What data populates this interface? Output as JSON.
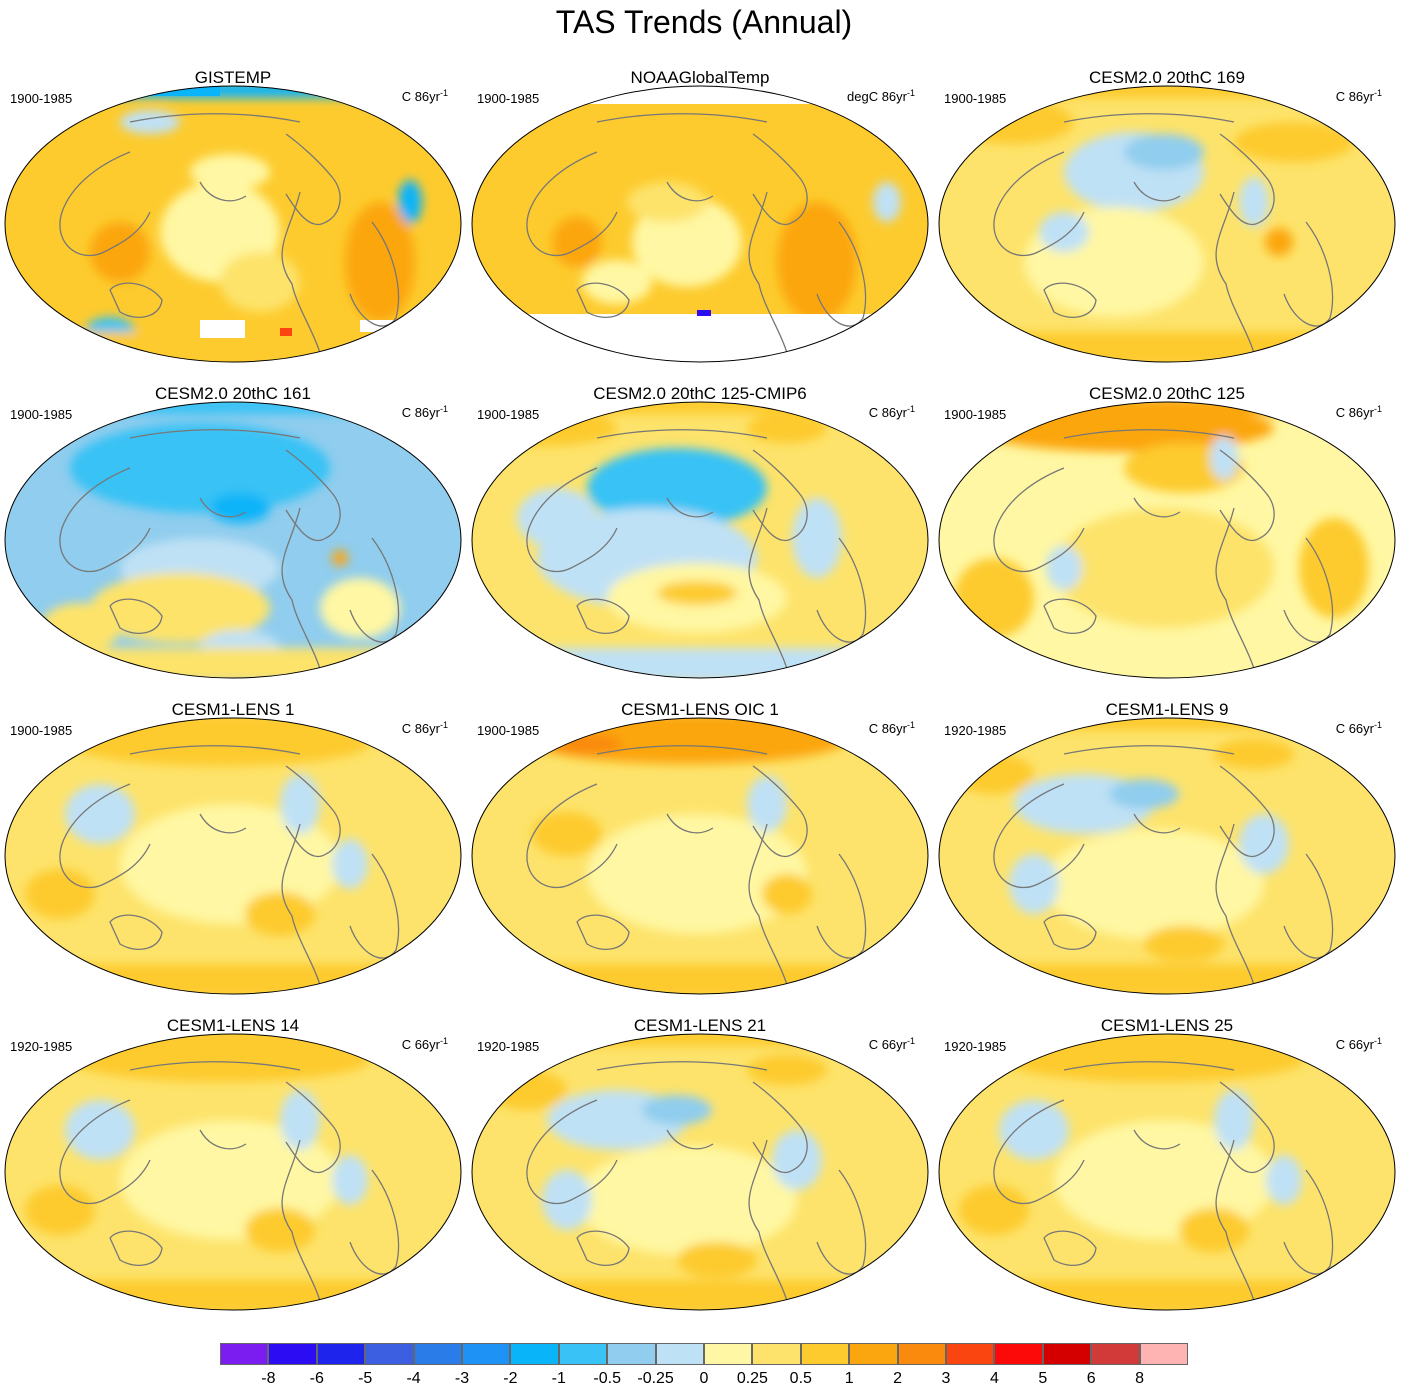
{
  "title": "TAS Trends (Annual)",
  "panels": [
    {
      "title": "GISTEMP",
      "period": "1900-1985",
      "units": "C 86yr",
      "units_exp": "-1",
      "pattern": "gistemp"
    },
    {
      "title": "NOAAGlobalTemp",
      "period": "1900-1985",
      "units": "degC 86yr",
      "units_exp": "-1",
      "pattern": "noaa"
    },
    {
      "title": "CESM2.0 20thC 169",
      "period": "1900-1985",
      "units": "C 86yr",
      "units_exp": "-1",
      "pattern": "mild"
    },
    {
      "title": "CESM2.0 20thC 161",
      "period": "1900-1985",
      "units": "C 86yr",
      "units_exp": "-1",
      "pattern": "cold"
    },
    {
      "title": "CESM2.0 20thC 125-CMIP6",
      "period": "1900-1985",
      "units": "C 86yr",
      "units_exp": "-1",
      "pattern": "coldpac"
    },
    {
      "title": "CESM2.0 20thC 125",
      "period": "1900-1985",
      "units": "C 86yr",
      "units_exp": "-1",
      "pattern": "warm"
    },
    {
      "title": "CESM1-LENS 1",
      "period": "1900-1985",
      "units": "C 86yr",
      "units_exp": "-1",
      "pattern": "lens"
    },
    {
      "title": "CESM1-LENS OIC 1",
      "period": "1900-1985",
      "units": "C 86yr",
      "units_exp": "-1",
      "pattern": "warmarctic"
    },
    {
      "title": "CESM1-LENS 9",
      "period": "1920-1985",
      "units": "C 66yr",
      "units_exp": "-1",
      "pattern": "lenscool"
    },
    {
      "title": "CESM1-LENS 14",
      "period": "1920-1985",
      "units": "C 66yr",
      "units_exp": "-1",
      "pattern": "lens"
    },
    {
      "title": "CESM1-LENS 21",
      "period": "1920-1985",
      "units": "C 66yr",
      "units_exp": "-1",
      "pattern": "lenscool"
    },
    {
      "title": "CESM1-LENS 25",
      "period": "1920-1985",
      "units": "C 66yr",
      "units_exp": "-1",
      "pattern": "lens"
    }
  ],
  "colorbar": {
    "labels": [
      "-8",
      "-6",
      "-5",
      "-4",
      "-3",
      "-2",
      "-1",
      "-0.5",
      "-0.25",
      "0",
      "0.25",
      "0.5",
      "1",
      "2",
      "3",
      "4",
      "5",
      "6",
      "8"
    ],
    "colors": [
      "#7b1cf0",
      "#2c0cf2",
      "#1e24ec",
      "#3c5ee0",
      "#2a7de8",
      "#1e93f5",
      "#0ab4f8",
      "#38c2f5",
      "#90cdee",
      "#bfe1f5",
      "#fff7a3",
      "#fde36b",
      "#fdcb2e",
      "#fca60f",
      "#fa8a0e",
      "#fb4510",
      "#fc0a0a",
      "#d40000",
      "#d23a3a",
      "#ffb4b4"
    ]
  }
}
